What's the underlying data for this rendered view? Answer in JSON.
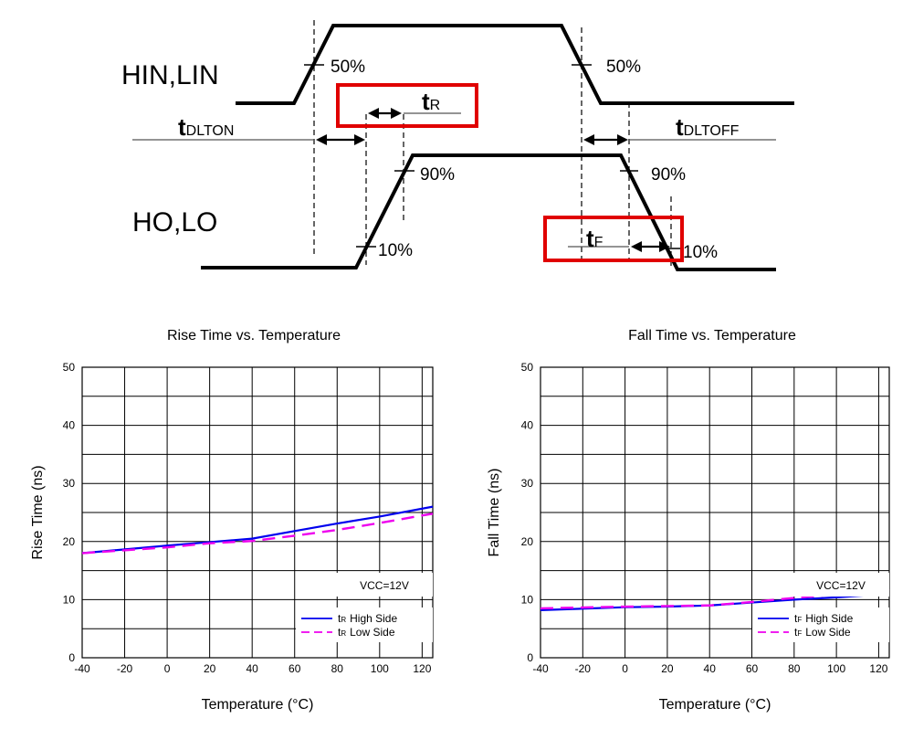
{
  "timing_diagram": {
    "input_label": "HIN,LIN",
    "output_label": "HO,LO",
    "pct_50_left": "50%",
    "pct_50_right": "50%",
    "pct_90_left": "90%",
    "pct_90_right": "90%",
    "pct_10_left": "10%",
    "pct_10_right": "10%",
    "t_r": {
      "main": "t",
      "sub": "R"
    },
    "t_f": {
      "main": "t",
      "sub": "F"
    },
    "t_dlton": {
      "main": "t",
      "sub": "DLTON"
    },
    "t_dltoff": {
      "main": "t",
      "sub": "DLTOFF"
    },
    "highlight_color": "#e00000"
  },
  "chart_data": [
    {
      "type": "line",
      "title": "Rise Time vs. Temperature",
      "xlabel": "Temperature (°C)",
      "ylabel": "Rise Time (ns)",
      "xlim": [
        -40,
        125
      ],
      "ylim": [
        0,
        50
      ],
      "xticks": [
        -40,
        -20,
        0,
        20,
        40,
        60,
        80,
        100,
        120
      ],
      "yticks": [
        0,
        10,
        20,
        30,
        40,
        50
      ],
      "annotation": "VCC=12V",
      "series": [
        {
          "name": "High Side",
          "sym": "t",
          "sub": "R",
          "color": "#0000ee",
          "dash": false,
          "x": [
            -40,
            0,
            20,
            40,
            60,
            80,
            100,
            125
          ],
          "y": [
            18,
            19.3,
            19.9,
            20.5,
            21.8,
            23.1,
            24.3,
            26
          ]
        },
        {
          "name": "Low Side",
          "sym": "t",
          "sub": "R",
          "color": "#ee00ee",
          "dash": true,
          "x": [
            -40,
            0,
            20,
            40,
            60,
            80,
            100,
            125
          ],
          "y": [
            18,
            19,
            19.7,
            20.1,
            21,
            22,
            23.2,
            24.8
          ]
        }
      ]
    },
    {
      "type": "line",
      "title": "Fall Time vs. Temperature",
      "xlabel": "Temperature (°C)",
      "ylabel": "Fall Time (ns)",
      "xlim": [
        -40,
        125
      ],
      "ylim": [
        0,
        50
      ],
      "xticks": [
        -40,
        -20,
        0,
        20,
        40,
        60,
        80,
        100,
        120
      ],
      "yticks": [
        0,
        10,
        20,
        30,
        40,
        50
      ],
      "annotation": "VCC=12V",
      "series": [
        {
          "name": "High Side",
          "sym": "t",
          "sub": "F",
          "color": "#0000ee",
          "dash": false,
          "x": [
            -40,
            0,
            20,
            40,
            60,
            80,
            100,
            125
          ],
          "y": [
            8.2,
            8.7,
            8.8,
            9.0,
            9.5,
            10.0,
            10.4,
            11.0
          ]
        },
        {
          "name": "Low Side",
          "sym": "t",
          "sub": "F",
          "color": "#ee00ee",
          "dash": true,
          "x": [
            -40,
            0,
            20,
            40,
            60,
            80,
            100,
            125
          ],
          "y": [
            8.5,
            8.8,
            8.9,
            9.0,
            9.6,
            10.3,
            10.9,
            11.8
          ]
        }
      ]
    }
  ]
}
